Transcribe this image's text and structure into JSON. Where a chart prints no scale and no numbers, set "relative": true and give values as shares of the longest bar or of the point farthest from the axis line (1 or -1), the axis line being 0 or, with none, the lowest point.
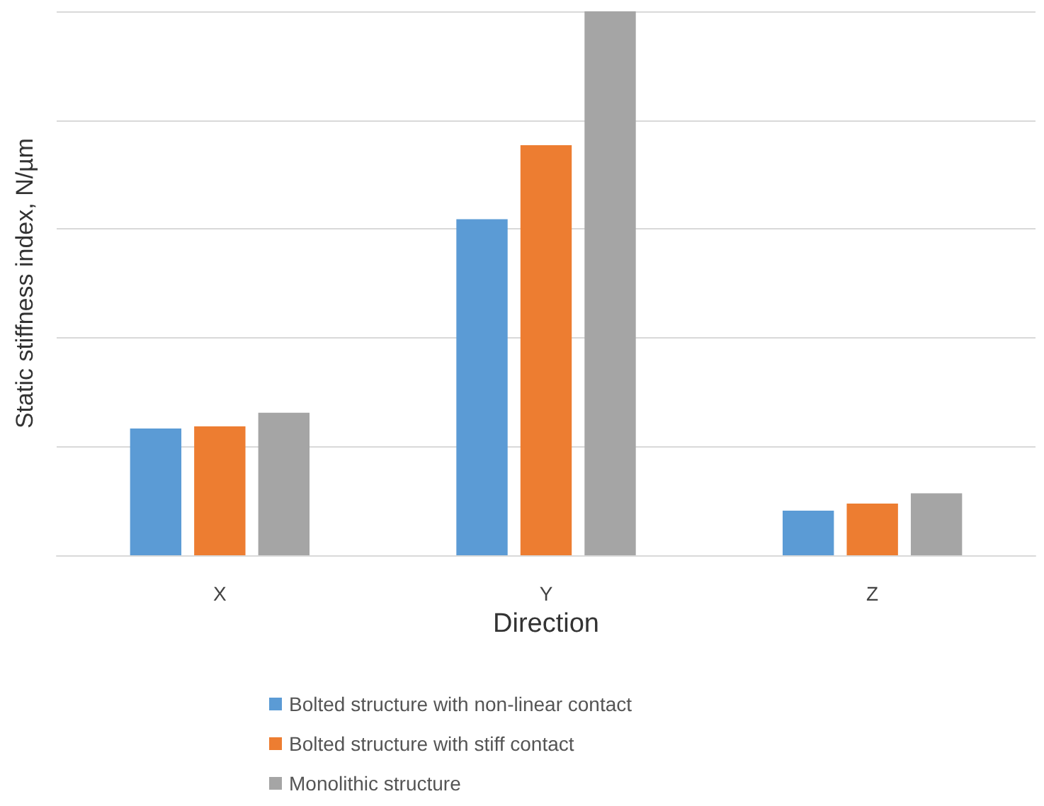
{
  "chart_data": {
    "type": "bar",
    "xlabel": "Direction",
    "ylabel": "Static stiffness index, N/µm",
    "categories": [
      "X",
      "Y",
      "Z"
    ],
    "relative": true,
    "grid": "y",
    "legend": "bottom",
    "series": [
      {
        "name": "Bolted structure with non-linear contact",
        "color": "#5b9bd5",
        "values": [
          0.233,
          0.618,
          0.082
        ]
      },
      {
        "name": "Bolted structure with stiff contact",
        "color": "#ed7d31",
        "values": [
          0.237,
          0.754,
          0.095
        ]
      },
      {
        "name": "Monolithic structure",
        "color": "#a5a5a5",
        "values": [
          0.262,
          1,
          0.114
        ]
      }
    ]
  }
}
